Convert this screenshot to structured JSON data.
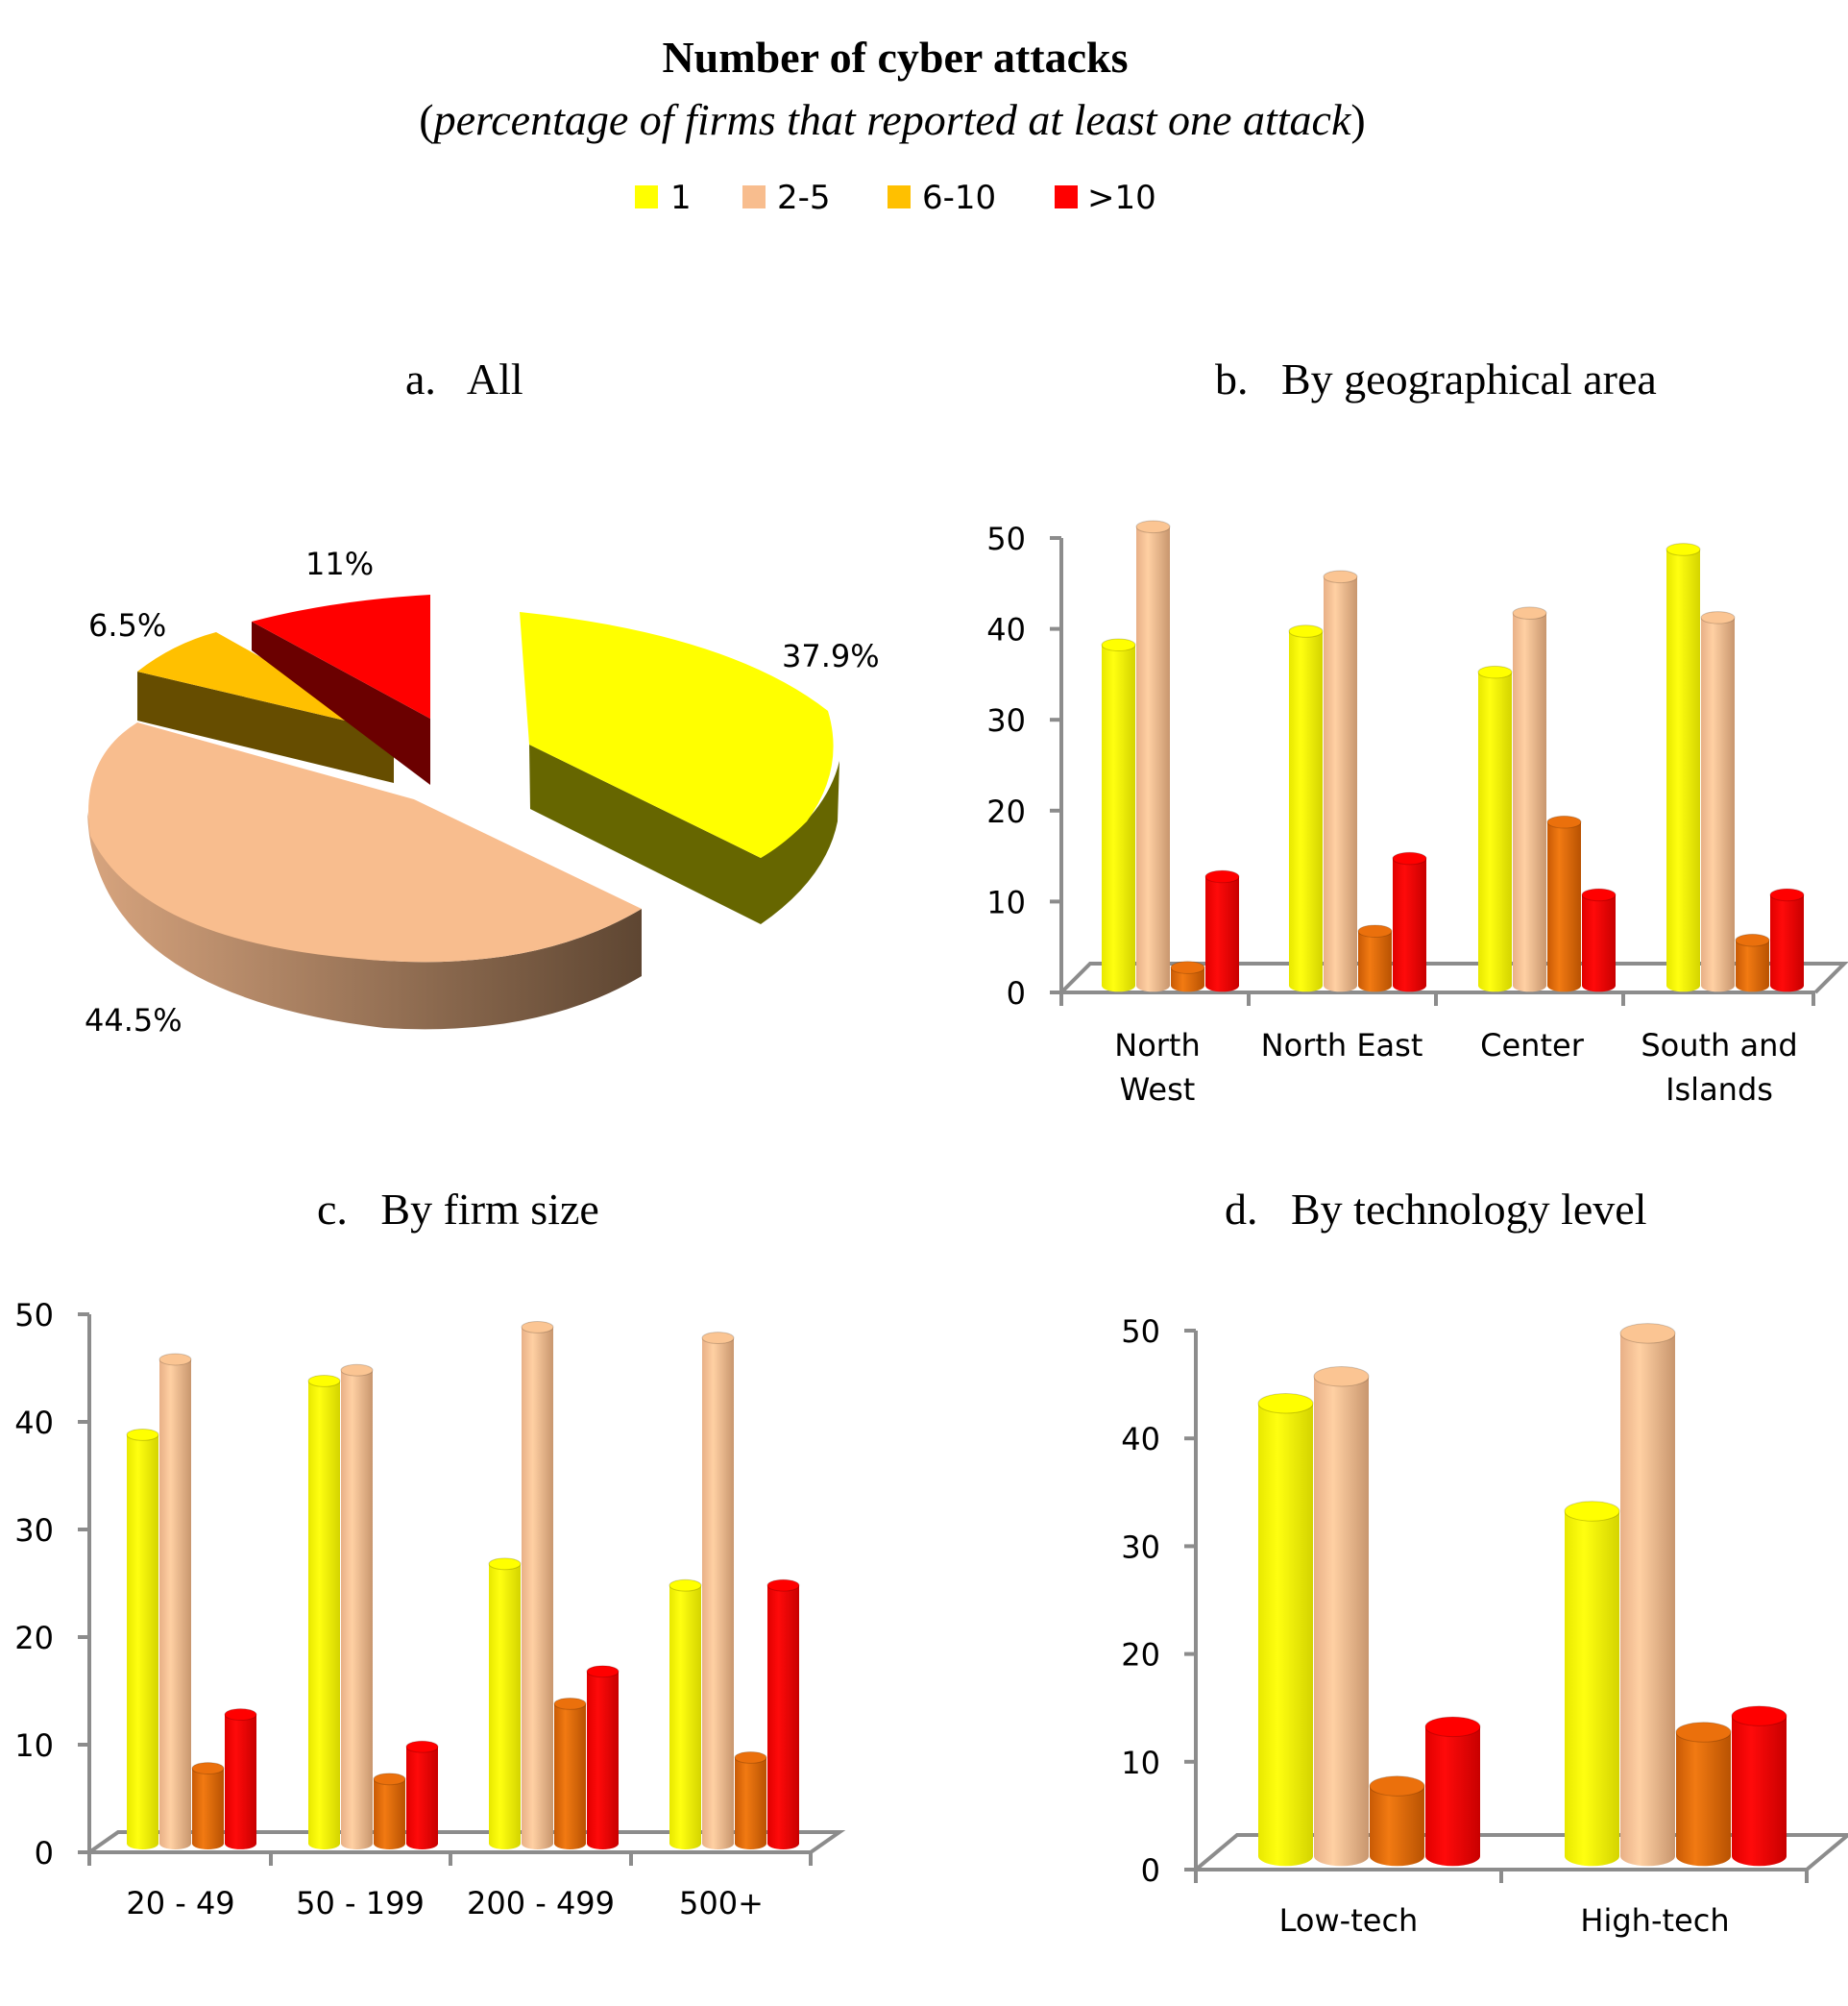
{
  "header": {
    "title": "Number of cyber attacks",
    "subtitle_open": "(",
    "subtitle": "percentage of firms that reported at least one attack",
    "subtitle_close": ")"
  },
  "legend": [
    {
      "label": "1",
      "color": "#FFFF00"
    },
    {
      "label": "2-5",
      "color": "#F8BD8E"
    },
    {
      "label": "6-10",
      "color": "#FFC000"
    },
    {
      "label": ">10",
      "color": "#FF0000"
    }
  ],
  "bar_colors": [
    "#FFFF00",
    "#FBC593",
    "#EB700C",
    "#FF0000"
  ],
  "chart_data": [
    {
      "type": "pie",
      "title": "a.   All",
      "categories": [
        "1",
        "2-5",
        "6-10",
        ">10"
      ],
      "values": [
        37.9,
        44.5,
        6.5,
        11
      ],
      "labels": [
        "37.9%",
        "44.5%",
        "6.5%",
        "11%"
      ],
      "colors": [
        "#FFFF00",
        "#F8BD8E",
        "#FFC000",
        "#FF0000"
      ]
    },
    {
      "type": "bar",
      "title": "b.   By geographical area",
      "categories": [
        [
          "North",
          "West"
        ],
        [
          "North East"
        ],
        [
          "Center"
        ],
        [
          "South and",
          "Islands"
        ]
      ],
      "series": [
        {
          "name": "1",
          "values": [
            37.5,
            39,
            34.5,
            48
          ]
        },
        {
          "name": "2-5",
          "values": [
            50.5,
            45,
            41,
            40.5
          ]
        },
        {
          "name": "6-10",
          "values": [
            2,
            6,
            18,
            5
          ]
        },
        {
          "name": ">10",
          "values": [
            12,
            14,
            10,
            10
          ]
        }
      ],
      "yticks": [
        "0",
        "10",
        "20",
        "30",
        "40",
        "50"
      ],
      "ylim": [
        0,
        50
      ]
    },
    {
      "type": "bar",
      "title": "c.   By firm size",
      "categories": [
        [
          "20 - 49"
        ],
        [
          "50 - 199"
        ],
        [
          "200 - 499"
        ],
        [
          "500+"
        ]
      ],
      "series": [
        {
          "name": "1",
          "values": [
            38,
            43,
            26,
            24
          ]
        },
        {
          "name": "2-5",
          "values": [
            45,
            44,
            48,
            47
          ]
        },
        {
          "name": "6-10",
          "values": [
            7,
            6,
            13,
            8
          ]
        },
        {
          "name": ">10",
          "values": [
            12,
            9,
            16,
            24
          ]
        }
      ],
      "yticks": [
        "0",
        "10",
        "20",
        "30",
        "40",
        "50"
      ],
      "ylim": [
        0,
        50
      ]
    },
    {
      "type": "bar",
      "title": "d.   By technology level",
      "categories": [
        [
          "Low-tech"
        ],
        [
          "High-tech"
        ]
      ],
      "series": [
        {
          "name": "1",
          "values": [
            42,
            32
          ]
        },
        {
          "name": "2-5",
          "values": [
            44.5,
            48.5
          ]
        },
        {
          "name": "6-10",
          "values": [
            6.5,
            11.5
          ]
        },
        {
          "name": ">10",
          "values": [
            12,
            13
          ]
        }
      ],
      "yticks": [
        "0",
        "10",
        "20",
        "30",
        "40",
        "50"
      ],
      "ylim": [
        0,
        50
      ]
    }
  ]
}
